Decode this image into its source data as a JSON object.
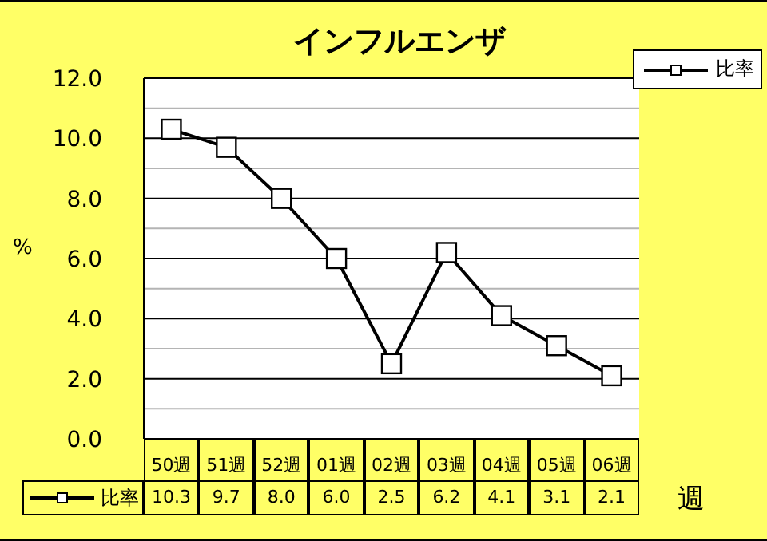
{
  "chart_data": {
    "type": "line",
    "title": "インフルエンザ",
    "xlabel": "週",
    "ylabel": "%",
    "categories": [
      "50週",
      "51週",
      "52週",
      "01週",
      "02週",
      "03週",
      "04週",
      "05週",
      "06週"
    ],
    "series": [
      {
        "name": "比率",
        "color": "#000000",
        "values": [
          10.3,
          9.7,
          8.0,
          6.0,
          2.5,
          6.2,
          4.1,
          3.1,
          2.1
        ],
        "value_labels": [
          "10.3",
          "9.7",
          "8.0",
          "6.0",
          "2.5",
          "6.2",
          "4.1",
          "3.1",
          "2.1"
        ]
      }
    ],
    "ylim": [
      0,
      12
    ],
    "yticks": [
      {
        "value": 0,
        "label": "0.0"
      },
      {
        "value": 1,
        "label": null
      },
      {
        "value": 2,
        "label": "2.0"
      },
      {
        "value": 3,
        "label": null
      },
      {
        "value": 4,
        "label": "4.0"
      },
      {
        "value": 5,
        "label": null
      },
      {
        "value": 6,
        "label": "6.0"
      },
      {
        "value": 7,
        "label": null
      },
      {
        "value": 8,
        "label": "8.0"
      },
      {
        "value": 9,
        "label": null
      },
      {
        "value": 10,
        "label": "10.0"
      },
      {
        "value": 11,
        "label": null
      },
      {
        "value": 12,
        "label": "12.0"
      }
    ],
    "grid": "y",
    "legend": "top right",
    "marker": "square",
    "line_style": "solid"
  }
}
